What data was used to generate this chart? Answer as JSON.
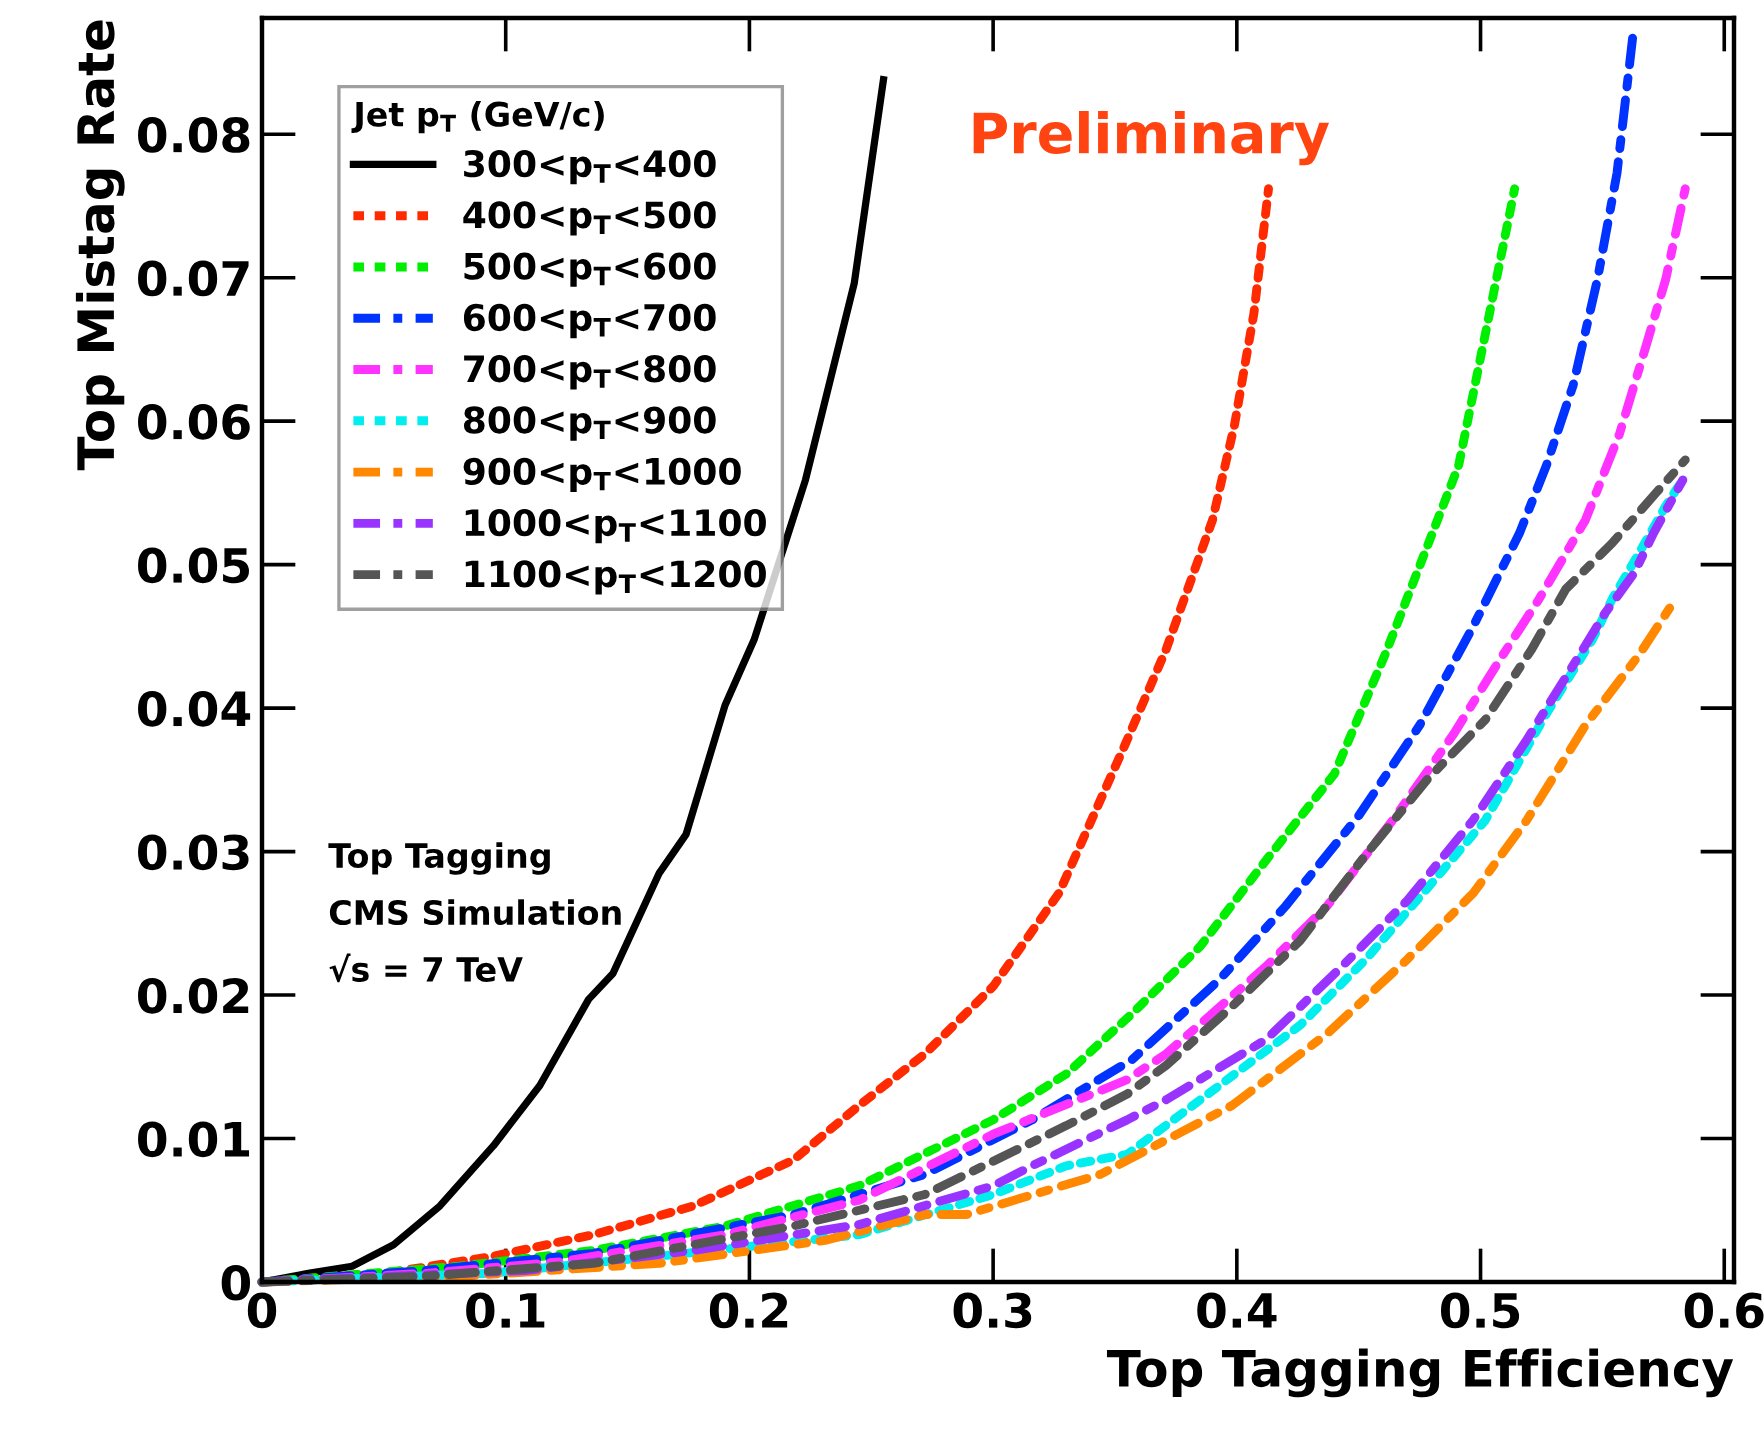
{
  "chart_data": {
    "type": "line",
    "xlabel": "Top Tagging Efficiency",
    "ylabel": "Top Mistag Rate",
    "legend_title": "Jet p$_{T}$ (GeV/c)",
    "legend": "top left",
    "grid": false,
    "marker": "none",
    "xlim": [
      0,
      0.604
    ],
    "ylim": [
      0,
      0.0881
    ],
    "xticks": [
      0,
      0.1,
      0.2,
      0.3,
      0.4,
      0.5,
      0.6
    ],
    "yticks": [
      0,
      0.01,
      0.02,
      0.03,
      0.04,
      0.05,
      0.06,
      0.07,
      0.08
    ],
    "annotations": [
      "Preliminary",
      "Top Tagging",
      "CMS Simulation",
      "√s = 7 TeV"
    ],
    "series": [
      {
        "name": "300<p$_{T}$<400",
        "color": "#000000",
        "line_style": "solid",
        "x": [
          0,
          0.019,
          0.037,
          0.054,
          0.073,
          0.095,
          0.114,
          0.134,
          0.144,
          0.163,
          0.174,
          0.19,
          0.202,
          0.223,
          0.243,
          0.255
        ],
        "values": [
          0,
          0.0006,
          0.0011,
          0.0026,
          0.0053,
          0.0095,
          0.0137,
          0.0197,
          0.0215,
          0.0285,
          0.0312,
          0.0402,
          0.0448,
          0.0559,
          0.0696,
          0.0838
        ]
      },
      {
        "name": "400<p$_{T}$<500",
        "color": "#ff2a00",
        "line_style": "dotted",
        "x": [
          0,
          0.054,
          0.095,
          0.136,
          0.177,
          0.218,
          0.245,
          0.272,
          0.3,
          0.327,
          0.354,
          0.371,
          0.39,
          0.399,
          0.407,
          0.413
        ],
        "values": [
          0,
          0.0007,
          0.0018,
          0.0033,
          0.0053,
          0.0085,
          0.0123,
          0.0159,
          0.0206,
          0.0271,
          0.0374,
          0.0441,
          0.0531,
          0.0597,
          0.0675,
          0.0762
        ]
      },
      {
        "name": "500<p$_{T}$<600",
        "color": "#00ee00",
        "line_style": "dotted",
        "x": [
          0,
          0.081,
          0.136,
          0.19,
          0.245,
          0.3,
          0.33,
          0.357,
          0.385,
          0.412,
          0.44,
          0.461,
          0.475,
          0.491,
          0.502,
          0.514
        ],
        "values": [
          0,
          0.0011,
          0.0022,
          0.0039,
          0.0067,
          0.0113,
          0.0145,
          0.0187,
          0.0234,
          0.0294,
          0.0354,
          0.0438,
          0.0499,
          0.0569,
          0.0661,
          0.0762
        ]
      },
      {
        "name": "600<p$_{T}$<700",
        "color": "#0033ff",
        "line_style": "dashed",
        "x": [
          0,
          0.067,
          0.136,
          0.218,
          0.272,
          0.316,
          0.357,
          0.393,
          0.42,
          0.45,
          0.475,
          0.497,
          0.516,
          0.527,
          0.538,
          0.548,
          0.556,
          0.563
        ],
        "values": [
          0,
          0.0008,
          0.002,
          0.0047,
          0.0075,
          0.0113,
          0.0155,
          0.0211,
          0.0262,
          0.0325,
          0.0388,
          0.0457,
          0.0522,
          0.0569,
          0.0625,
          0.0699,
          0.0773,
          0.0876
        ]
      },
      {
        "name": "700<p$_{T}$<800",
        "color": "#ff33ff",
        "line_style": "dashed",
        "x": [
          0,
          0.067,
          0.122,
          0.19,
          0.245,
          0.3,
          0.355,
          0.371,
          0.412,
          0.437,
          0.464,
          0.489,
          0.508,
          0.524,
          0.543,
          0.557,
          0.568,
          0.576,
          0.584
        ],
        "values": [
          0,
          0.0006,
          0.0014,
          0.0033,
          0.0057,
          0.0103,
          0.0141,
          0.0159,
          0.022,
          0.0262,
          0.0322,
          0.0382,
          0.0434,
          0.0476,
          0.0531,
          0.0591,
          0.0653,
          0.0699,
          0.0762
        ]
      },
      {
        "name": "800<p$_{T}$<900",
        "color": "#00eeee",
        "line_style": "dotted",
        "x": [
          0,
          0.093,
          0.163,
          0.245,
          0.3,
          0.33,
          0.355,
          0.385,
          0.426,
          0.453,
          0.481,
          0.502,
          0.527,
          0.546,
          0.554,
          0.565,
          0.576,
          0.584
        ],
        "values": [
          0,
          0.0006,
          0.0018,
          0.0033,
          0.0061,
          0.0081,
          0.0089,
          0.0127,
          0.0179,
          0.0225,
          0.028,
          0.0322,
          0.0396,
          0.0448,
          0.0476,
          0.0508,
          0.0541,
          0.0562
        ]
      },
      {
        "name": "900<p$_{T}$<1000",
        "color": "#ff8800",
        "line_style": "dashed",
        "x": [
          0,
          0.081,
          0.163,
          0.231,
          0.272,
          0.289,
          0.344,
          0.398,
          0.437,
          0.47,
          0.497,
          0.519,
          0.543,
          0.565,
          0.58
        ],
        "values": [
          0,
          0.0004,
          0.0013,
          0.0029,
          0.0047,
          0.0047,
          0.0075,
          0.0123,
          0.0173,
          0.0225,
          0.0271,
          0.0322,
          0.0388,
          0.0437,
          0.0476
        ]
      },
      {
        "name": "1000<p$_{T}$<1100",
        "color": "#9933ff",
        "line_style": "dashed",
        "x": [
          0,
          0.108,
          0.177,
          0.245,
          0.3,
          0.316,
          0.355,
          0.371,
          0.412,
          0.442,
          0.47,
          0.497,
          0.519,
          0.541,
          0.551,
          0.563,
          0.571,
          0.583
        ],
        "values": [
          0,
          0.0008,
          0.0022,
          0.004,
          0.0067,
          0.0081,
          0.0113,
          0.0127,
          0.0169,
          0.0218,
          0.0266,
          0.0322,
          0.0378,
          0.0438,
          0.0466,
          0.0494,
          0.0522,
          0.0559
        ]
      },
      {
        "name": "1100<p$_{T}$<1200",
        "color": "#555555",
        "line_style": "dashed",
        "x": [
          0,
          0.067,
          0.136,
          0.218,
          0.272,
          0.33,
          0.355,
          0.371,
          0.398,
          0.426,
          0.453,
          0.478,
          0.502,
          0.521,
          0.535,
          0.554,
          0.572,
          0.584
        ],
        "values": [
          0,
          0.0004,
          0.0013,
          0.0039,
          0.0061,
          0.0109,
          0.0131,
          0.0151,
          0.0192,
          0.0238,
          0.0298,
          0.035,
          0.0392,
          0.0441,
          0.0483,
          0.0515,
          0.055,
          0.0573
        ]
      }
    ]
  }
}
